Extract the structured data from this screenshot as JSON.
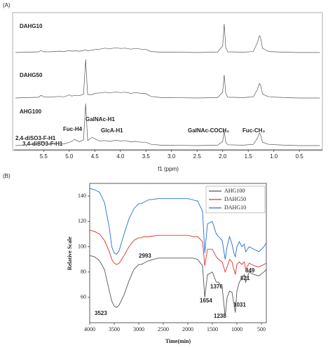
{
  "chart_data": [
    {
      "type": "spectrum",
      "panel_label": "(A)",
      "xlabel": "f1 (ppm)",
      "xlim": [
        6.08,
        0.05
      ],
      "ylim": [
        0,
        100
      ],
      "xticks": [
        5.5,
        {
          "value": 5,
          "label": "5.0"
        },
        4.5,
        {
          "value": 4,
          "label": "4.0"
        },
        3.5,
        {
          "value": 3,
          "label": "3.0"
        },
        2.5,
        {
          "value": 2,
          "label": "2.0"
        },
        1.5,
        {
          "value": 1,
          "label": "1.0"
        },
        0.5
      ],
      "x": [
        6.05,
        5.8,
        5.6,
        5.55,
        5.5,
        5.4,
        5.3,
        5.2,
        5.1,
        5.0,
        4.95,
        4.9,
        4.8,
        4.72,
        4.68,
        4.64,
        4.55,
        4.5,
        4.4,
        4.3,
        4.2,
        4.1,
        4.0,
        3.9,
        3.8,
        3.7,
        3.6,
        3.5,
        3.4,
        3.2,
        3.0,
        2.5,
        2.1,
        2.0,
        1.97,
        1.94,
        1.9,
        1.6,
        1.4,
        1.32,
        1.28,
        1.26,
        1.22,
        1.1,
        0.8,
        0.5,
        0.1
      ],
      "series": [
        {
          "name": "DAHG10",
          "color": "#555555",
          "values": [
            0,
            1,
            2,
            6,
            2,
            2,
            3,
            4,
            3,
            6,
            4,
            5,
            4,
            6,
            8,
            5,
            7,
            9,
            10,
            13,
            11,
            14,
            12,
            13,
            10,
            12,
            10,
            9,
            3,
            1,
            1,
            0,
            1,
            20,
            85,
            15,
            2,
            1,
            3,
            30,
            50,
            45,
            12,
            3,
            1,
            0,
            0
          ]
        },
        {
          "name": "DAHG50",
          "color": "#555555",
          "values": [
            0,
            1,
            2,
            7,
            3,
            2,
            3,
            4,
            3,
            8,
            5,
            7,
            6,
            10,
            100,
            9,
            9,
            12,
            13,
            15,
            13,
            16,
            14,
            15,
            12,
            14,
            12,
            11,
            4,
            1,
            1,
            0,
            1,
            15,
            60,
            12,
            2,
            1,
            3,
            22,
            38,
            34,
            10,
            3,
            1,
            0,
            0
          ]
        },
        {
          "name": "AHG100",
          "color": "#555555",
          "values": [
            0,
            2,
            4,
            10,
            6,
            4,
            6,
            5,
            4,
            8,
            10,
            15,
            9,
            14,
            100,
            12,
            20,
            16,
            11,
            12,
            10,
            13,
            11,
            12,
            9,
            10,
            8,
            8,
            3,
            1,
            1,
            0,
            1,
            10,
            35,
            8,
            2,
            1,
            3,
            18,
            30,
            26,
            8,
            3,
            1,
            0,
            0
          ]
        }
      ],
      "annotations": [
        "2,4-diSO3-F-H1",
        "3,4-diSO3-F-H1",
        "Fuc-H4",
        "GalNAc-H1",
        "GlcA-H1",
        "GalNAc-COCH₃",
        "Fuc-CH₃"
      ]
    },
    {
      "type": "line",
      "panel_label": "(B)",
      "xlabel": "Time(min)",
      "ylabel": "Relative Scale",
      "xlim": [
        4000,
        400
      ],
      "ylim": [
        40,
        150
      ],
      "xticks": [
        4000,
        3500,
        3000,
        2500,
        2000,
        1500,
        1000,
        500
      ],
      "yticks": [
        60,
        80,
        100,
        120,
        140
      ],
      "legend": "upper right",
      "x": [
        4000,
        3900,
        3800,
        3700,
        3600,
        3550,
        3500,
        3450,
        3400,
        3300,
        3200,
        3100,
        3000,
        2950,
        2900,
        2800,
        2600,
        2400,
        2200,
        2000,
        1900,
        1800,
        1700,
        1654,
        1600,
        1500,
        1420,
        1376,
        1300,
        1238,
        1200,
        1150,
        1100,
        1060,
        1031,
        1000,
        950,
        900,
        849,
        821,
        750,
        650,
        550,
        450,
        400
      ],
      "series": [
        {
          "name": "AHG100",
          "color": "#555555",
          "values": [
            93,
            92,
            89,
            82,
            65,
            57,
            53,
            52,
            54,
            62,
            73,
            82,
            86,
            86,
            87,
            89,
            91,
            91,
            91,
            91,
            91,
            90,
            85,
            60,
            78,
            80,
            72,
            72,
            68,
            45,
            60,
            65,
            64,
            55,
            48,
            65,
            72,
            75,
            78,
            72,
            80,
            78,
            77,
            80,
            82
          ]
        },
        {
          "name": "DAHG50",
          "color": "#e03030",
          "values": [
            113,
            112,
            110,
            105,
            96,
            90,
            87,
            86,
            87,
            93,
            100,
            105,
            107,
            107,
            108,
            108,
            109,
            109,
            109,
            109,
            108,
            108,
            104,
            85,
            98,
            98,
            92,
            90,
            88,
            80,
            84,
            90,
            88,
            82,
            78,
            86,
            88,
            86,
            88,
            82,
            87,
            85,
            84,
            86,
            87
          ]
        },
        {
          "name": "DAHG10",
          "color": "#1f6fd6",
          "values": [
            146,
            145,
            143,
            135,
            115,
            100,
            95,
            94,
            97,
            110,
            122,
            130,
            134,
            134,
            135,
            137,
            138,
            138,
            138,
            138,
            137,
            136,
            128,
            95,
            118,
            120,
            110,
            108,
            105,
            90,
            100,
            108,
            102,
            95,
            92,
            100,
            104,
            100,
            102,
            96,
            100,
            98,
            96,
            100,
            103
          ]
        }
      ],
      "annotations": [
        "3523",
        "2993",
        "1654",
        "1376",
        "1238",
        "1031",
        "821",
        "849"
      ]
    }
  ]
}
